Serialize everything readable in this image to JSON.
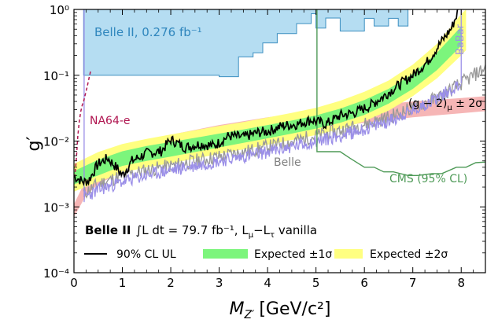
{
  "chart_data": {
    "type": "line",
    "ylabel": "g′",
    "xlabel": "M",
    "xlabel_sub": "Z′",
    "xlabel_unit": "[GeV/c²]",
    "xlim": [
      0,
      8.5
    ],
    "ylim": [
      0.0001,
      1
    ],
    "yscale": "log",
    "xticks": [
      0,
      1,
      2,
      3,
      4,
      5,
      6,
      7,
      8
    ],
    "xtick_labels": [
      "0",
      "1",
      "2",
      "3",
      "4",
      "5",
      "6",
      "7",
      "8"
    ],
    "yticks": [
      0.0001,
      0.001,
      0.01,
      0.1,
      1
    ],
    "ytick_labels": [
      "10⁻⁴",
      "10⁻³",
      "10⁻²",
      "10⁻¹",
      "10⁰"
    ],
    "legend_position": "lower-left",
    "legend_title": {
      "experiment": "Belle II",
      "formula": "∫L dt  =  79.7 fb⁻¹, L",
      "mu": "μ",
      "minus": "−L",
      "tau": "τ",
      "suffix": " vanilla"
    },
    "legend": {
      "ul_label": "90% CL UL",
      "exp1_label": "Expected ±1σ",
      "exp2_label": "Expected ±2σ"
    },
    "annotations": {
      "belle2_old": "Belle II, 0.276 fb⁻¹",
      "babar": "BaBar",
      "na64": "NA64-e",
      "gm2": "(g − 2)",
      "gm2_sub": "μ",
      "gm2_suffix": " ± 2σ",
      "belle": "Belle",
      "cms": "CMS (95% CL)"
    },
    "colors": {
      "ul_line": "#000000",
      "exp1": "#7cf57c",
      "exp2": "#ffff80",
      "belle2_fill": "#b5ddf2",
      "belle2_edge": "#3c8fc0",
      "babar": "#9b8fe8",
      "na64": "#b01550",
      "gm2_band": "#f5a9a9",
      "belle": "#999999",
      "cms": "#4e9a57"
    },
    "series": [
      {
        "name": "90% CL UL",
        "x": [
          0.0,
          0.2,
          0.3,
          0.5,
          0.7,
          0.9,
          1.0,
          1.2,
          1.5,
          1.8,
          2.0,
          2.3,
          2.6,
          2.9,
          3.2,
          3.5,
          3.8,
          4.0,
          4.3,
          4.6,
          4.9,
          5.2,
          5.5,
          5.8,
          6.1,
          6.4,
          6.7,
          7.0,
          7.3,
          7.6,
          7.8,
          7.95
        ],
        "y": [
          0.0029,
          0.0024,
          0.0025,
          0.0045,
          0.0055,
          0.0038,
          0.003,
          0.005,
          0.0065,
          0.007,
          0.0105,
          0.008,
          0.009,
          0.0085,
          0.012,
          0.0115,
          0.0135,
          0.014,
          0.017,
          0.018,
          0.021,
          0.018,
          0.0245,
          0.027,
          0.034,
          0.048,
          0.07,
          0.1,
          0.16,
          0.33,
          0.52,
          1.0
        ]
      },
      {
        "name": "Expected ±1σ",
        "x": [
          0.0,
          0.5,
          1.0,
          1.5,
          2.0,
          2.5,
          3.0,
          3.5,
          4.0,
          4.5,
          5.0,
          5.5,
          6.0,
          6.5,
          7.0,
          7.5,
          8.0
        ],
        "y_low": [
          0.0022,
          0.003,
          0.0042,
          0.005,
          0.0058,
          0.0068,
          0.008,
          0.0094,
          0.011,
          0.013,
          0.0155,
          0.019,
          0.025,
          0.037,
          0.062,
          0.12,
          0.28
        ],
        "y_high": [
          0.0035,
          0.0052,
          0.007,
          0.0084,
          0.0097,
          0.0112,
          0.013,
          0.015,
          0.0175,
          0.0205,
          0.0245,
          0.031,
          0.042,
          0.062,
          0.105,
          0.22,
          0.55
        ]
      },
      {
        "name": "Expected ±2σ",
        "x": [
          0.0,
          0.5,
          1.0,
          1.5,
          2.0,
          2.5,
          3.0,
          3.5,
          4.0,
          4.5,
          5.0,
          5.5,
          6.0,
          6.5,
          7.0,
          7.5,
          8.0,
          8.1
        ],
        "y_low": [
          0.0017,
          0.0024,
          0.0033,
          0.004,
          0.0046,
          0.0054,
          0.0064,
          0.0075,
          0.0088,
          0.0104,
          0.0124,
          0.0152,
          0.02,
          0.029,
          0.048,
          0.09,
          0.2,
          0.24
        ],
        "y_high": [
          0.0045,
          0.0068,
          0.009,
          0.0108,
          0.0126,
          0.0146,
          0.017,
          0.0195,
          0.0228,
          0.0268,
          0.032,
          0.041,
          0.056,
          0.083,
          0.145,
          0.3,
          0.85,
          1.0
        ]
      },
      {
        "name": "(g − 2)μ ± 2σ",
        "x": [
          0.0,
          0.25,
          0.5,
          1.0,
          1.5,
          2.0,
          3.0,
          4.0,
          5.0,
          6.0,
          7.0,
          8.0,
          8.5
        ],
        "y_low": [
          0.0007,
          0.0015,
          0.0022,
          0.0035,
          0.0045,
          0.0055,
          0.0085,
          0.0115,
          0.015,
          0.019,
          0.023,
          0.0265,
          0.0285
        ],
        "y_high": [
          0.0011,
          0.0026,
          0.0042,
          0.0075,
          0.01,
          0.0125,
          0.0175,
          0.023,
          0.0285,
          0.034,
          0.04,
          0.045,
          0.048
        ]
      },
      {
        "name": "Belle",
        "x": [
          0.2,
          0.5,
          1.0,
          1.5,
          2.0,
          2.5,
          3.0,
          3.5,
          4.0,
          4.5,
          5.0,
          5.5,
          6.0,
          6.5,
          7.0,
          7.5,
          8.0,
          8.5
        ],
        "y": [
          0.0016,
          0.0022,
          0.003,
          0.0036,
          0.0042,
          0.005,
          0.0058,
          0.0068,
          0.0082,
          0.0098,
          0.012,
          0.0145,
          0.018,
          0.023,
          0.032,
          0.045,
          0.075,
          0.13
        ]
      },
      {
        "name": "BaBar",
        "x": [
          0.21,
          0.5,
          1.0,
          1.5,
          2.0,
          2.5,
          3.0,
          3.5,
          4.0,
          4.5,
          5.0,
          5.5,
          6.0,
          6.5,
          7.0,
          7.5,
          8.0
        ],
        "y": [
          0.0014,
          0.0018,
          0.0024,
          0.003,
          0.0036,
          0.0042,
          0.005,
          0.0058,
          0.0068,
          0.0082,
          0.0098,
          0.012,
          0.015,
          0.02,
          0.029,
          0.045,
          0.075
        ]
      },
      {
        "name": "CMS (95% CL)",
        "x": [
          5.02,
          5.5,
          5.7,
          6.0,
          6.2,
          6.4,
          6.6,
          6.9,
          7.1,
          7.4,
          7.6,
          7.9,
          8.1,
          8.3,
          8.5
        ],
        "y": [
          0.0069,
          0.0069,
          0.0055,
          0.004,
          0.004,
          0.0034,
          0.0034,
          0.003,
          0.003,
          0.0032,
          0.0032,
          0.004,
          0.004,
          0.0047,
          0.0048
        ]
      },
      {
        "name": "Belle II, 0.276 fb⁻¹",
        "x": [
          0.2,
          0.5,
          1.0,
          2.0,
          3.0,
          3.4,
          3.7,
          3.9,
          4.2,
          4.6,
          4.9,
          5.0,
          5.2,
          5.5,
          5.7,
          6.0,
          6.2,
          6.5,
          6.7,
          6.9,
          7.1,
          7.4,
          7.7,
          8.0
        ],
        "y": [
          0.1,
          0.1,
          0.1,
          0.1,
          0.095,
          0.19,
          0.22,
          0.31,
          0.43,
          0.61,
          0.86,
          0.52,
          0.74,
          0.47,
          0.47,
          0.73,
          0.56,
          0.73,
          0.56,
          1.0,
          1.0,
          1.0,
          1.0,
          1.0
        ],
        "y_top": 1.0
      },
      {
        "name": "NA64-e",
        "x": [
          0.02,
          0.05,
          0.08,
          0.11,
          0.14,
          0.17,
          0.2
        ],
        "y": [
          0.0028,
          0.0055,
          0.012,
          0.02,
          0.028,
          0.035,
          0.04
        ]
      },
      {
        "name": "NA64-e (upper)",
        "x": [
          0.2,
          0.23,
          0.27,
          0.31,
          0.35
        ],
        "y": [
          0.04,
          0.05,
          0.065,
          0.09,
          0.12
        ]
      }
    ]
  }
}
